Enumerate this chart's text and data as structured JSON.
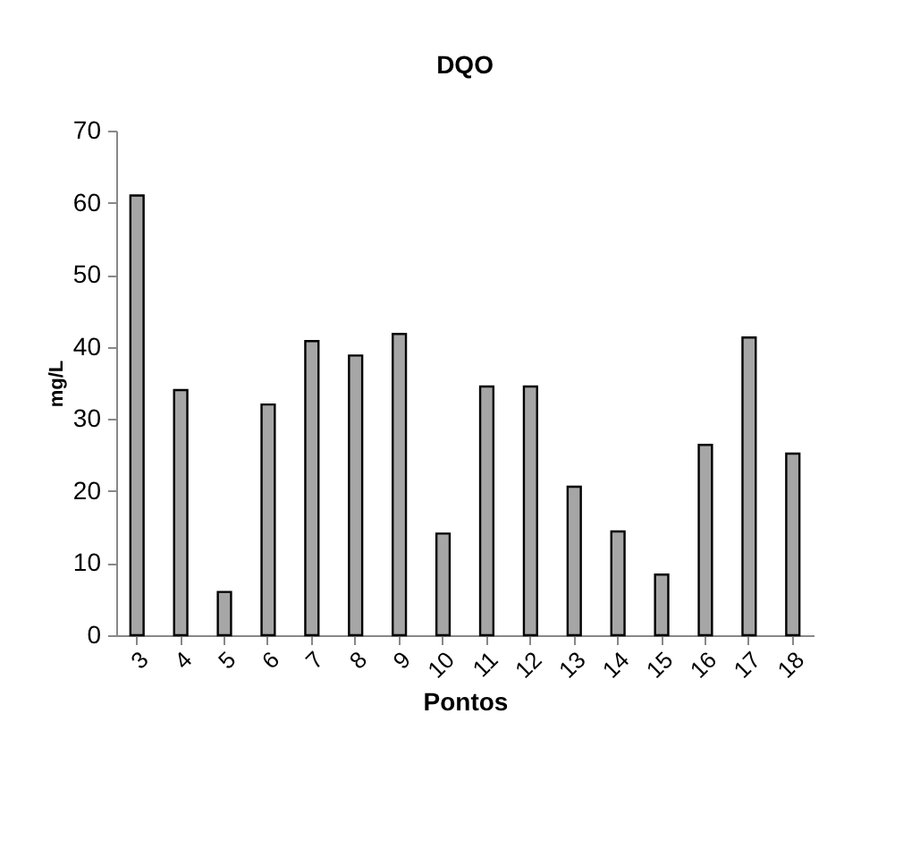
{
  "chart_data": {
    "type": "bar",
    "title": "DQO",
    "xlabel": "Pontos",
    "ylabel": "mg/L",
    "categories": [
      "3",
      "4",
      "5",
      "6",
      "7",
      "8",
      "9",
      "10",
      "11",
      "12",
      "13",
      "14",
      "15",
      "16",
      "17",
      "18"
    ],
    "values": [
      61,
      34,
      6,
      32,
      40.8,
      38.8,
      41.8,
      14.1,
      34.5,
      34.5,
      20.6,
      14.4,
      8.4,
      26.4,
      41.3,
      25.2
    ],
    "color": "#a6a6a6",
    "ylim": [
      0,
      70
    ],
    "yticks": [
      0,
      10,
      20,
      30,
      40,
      50,
      60,
      70
    ],
    "grid": false
  }
}
